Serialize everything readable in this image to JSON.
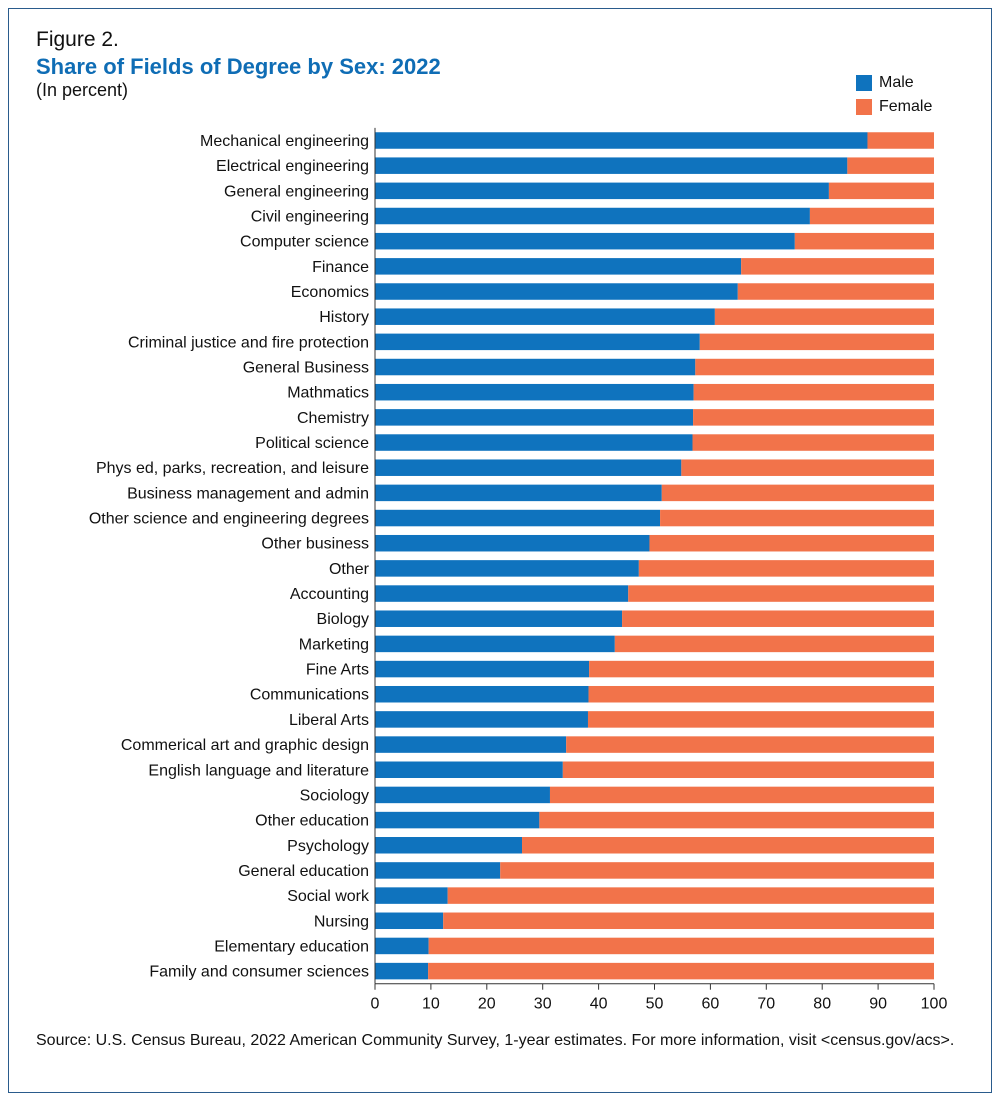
{
  "figure_label": "Figure 2.",
  "title": "Share of Fields of Degree by Sex: 2022",
  "subtitle": "(In percent)",
  "source": "Source: U.S. Census Bureau, 2022 American Community Survey, 1-year estimates. For more information,  visit <census.gov/acs>.",
  "colors": {
    "male": "#0f73be",
    "female": "#f2734a",
    "frame": "#2a5b8c"
  },
  "chart_data": {
    "type": "bar",
    "orientation": "horizontal",
    "stacked": true,
    "title": "Share of Fields of Degree by Sex: 2022",
    "xlim": [
      0,
      100
    ],
    "xticks": [
      0,
      10,
      20,
      30,
      40,
      50,
      60,
      70,
      80,
      90,
      100
    ],
    "legend": "top-right",
    "grid": false,
    "categories": [
      "Mechanical engineering",
      "Electrical engineering",
      "General engineering",
      "Civil engineering",
      "Computer science",
      "Finance",
      "Economics",
      "History",
      "Criminal justice and fire protection",
      "General Business",
      "Mathmatics",
      "Chemistry",
      "Political science",
      "Phys ed, parks, recreation, and leisure",
      "Business management and admin",
      "Other science and engineering degrees",
      "Other business",
      "Other ",
      "Accounting",
      "Biology",
      "Marketing",
      "Fine Arts",
      "Communications",
      "Liberal Arts",
      "Commerical art and graphic design",
      "English language and literature",
      "Sociology",
      "Other education",
      "Psychology",
      "General education",
      "Social work",
      "Nursing",
      "Elementary education",
      "Family and consumer sciences"
    ],
    "series": [
      {
        "name": "Male",
        "color": "#0f73be",
        "values": [
          88.1,
          84.5,
          81.2,
          77.8,
          75.1,
          65.5,
          64.9,
          60.8,
          58.1,
          57.3,
          57.0,
          56.9,
          56.8,
          54.8,
          51.3,
          51.0,
          49.1,
          47.2,
          45.3,
          44.2,
          42.9,
          38.3,
          38.2,
          38.1,
          34.2,
          33.6,
          31.3,
          29.4,
          26.3,
          22.4,
          13.0,
          12.2,
          9.6,
          9.5
        ]
      },
      {
        "name": "Female",
        "color": "#f2734a",
        "values": [
          11.9,
          15.5,
          18.8,
          22.2,
          24.9,
          34.5,
          35.1,
          39.2,
          41.9,
          42.7,
          43.0,
          43.1,
          43.2,
          45.2,
          48.7,
          49.0,
          50.9,
          52.8,
          54.7,
          55.8,
          57.1,
          61.7,
          61.8,
          61.9,
          65.8,
          66.4,
          68.7,
          70.6,
          73.7,
          77.6,
          87.0,
          87.8,
          90.4,
          90.5
        ]
      }
    ]
  }
}
